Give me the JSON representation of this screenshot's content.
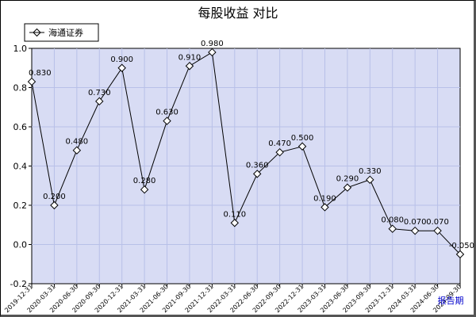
{
  "chart_data": {
    "type": "line",
    "title": "每股收益  对比",
    "xlabel": "报告期",
    "ylabel": "",
    "ylim": [
      -0.2,
      1.0
    ],
    "yticks": [
      "-0.2",
      "0.0",
      "0.2",
      "0.4",
      "0.6",
      "0.8",
      "1.0"
    ],
    "grid": true,
    "legend_position": "top-left",
    "colors": {
      "plot_bg": "#d8dcf4",
      "grid": "#b8c0e8",
      "line": "#000000",
      "xlabel": "#0000cc"
    },
    "categories": [
      "2019-12-31",
      "2020-03-31",
      "2020-06-30",
      "2020-09-30",
      "2020-12-31",
      "2021-03-31",
      "2021-06-30",
      "2021-09-30",
      "2021-12-31",
      "2022-03-31",
      "2022-06-30",
      "2022-09-30",
      "2022-12-31",
      "2023-03-31",
      "2023-06-30",
      "2023-09-30",
      "2023-12-31",
      "2024-03-31",
      "2024-06-30",
      "2024-09-30"
    ],
    "series": [
      {
        "name": "海通证券",
        "values": [
          0.83,
          0.2,
          0.48,
          0.73,
          0.9,
          0.28,
          0.63,
          0.91,
          0.98,
          0.11,
          0.36,
          0.47,
          0.5,
          0.19,
          0.29,
          0.33,
          0.08,
          0.07,
          0.07,
          -0.05
        ],
        "labels": [
          "0.830",
          "0.200",
          "0.480",
          "0.730",
          "0.900",
          "0.280",
          "0.630",
          "0.910",
          "0.980",
          "0.110",
          "0.360",
          "0.470",
          "0.500",
          "0.190",
          "0.290",
          "0.330",
          "0.080",
          "0.070",
          "0.070",
          "-0.050"
        ]
      }
    ]
  }
}
